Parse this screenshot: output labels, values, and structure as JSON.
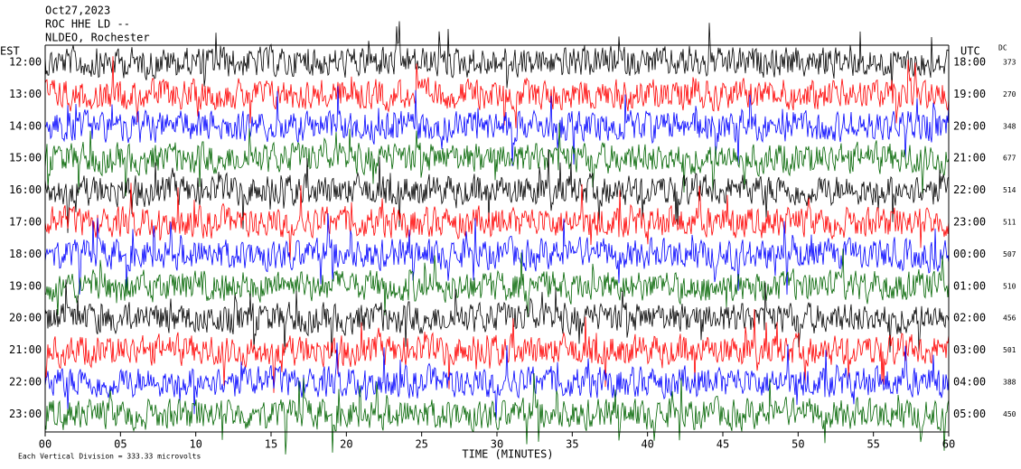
{
  "header": {
    "date": "Oct27,2023",
    "station": "ROC HHE LD --",
    "network": "NLDEO, Rochester"
  },
  "chart_data": {
    "type": "helicorder",
    "left_label": "EST",
    "right_label": "UTC",
    "dc_label": "DC",
    "x_label": "TIME (MINUTES)",
    "note": "Each Vertical Division = 333.33 microvolts",
    "xlim": [
      0,
      60
    ],
    "xticks": [
      {
        "value": 0,
        "label": "00"
      },
      {
        "value": 5,
        "label": "05"
      },
      10,
      15,
      20,
      25,
      30,
      35,
      40,
      45,
      50,
      55,
      60
    ],
    "rows": [
      {
        "est": "12:00",
        "utc": "18:00",
        "dc": 373,
        "color": "#000000"
      },
      {
        "est": "13:00",
        "utc": "19:00",
        "dc": 270,
        "color": "#ff0000"
      },
      {
        "est": "14:00",
        "utc": "20:00",
        "dc": 348,
        "color": "#0000ff"
      },
      {
        "est": "15:00",
        "utc": "21:00",
        "dc": 677,
        "color": "#006400"
      },
      {
        "est": "16:00",
        "utc": "22:00",
        "dc": 514,
        "color": "#000000"
      },
      {
        "est": "17:00",
        "utc": "23:00",
        "dc": 511,
        "color": "#ff0000"
      },
      {
        "est": "18:00",
        "utc": "00:00",
        "dc": 507,
        "color": "#0000ff"
      },
      {
        "est": "19:00",
        "utc": "01:00",
        "dc": 510,
        "color": "#006400"
      },
      {
        "est": "20:00",
        "utc": "02:00",
        "dc": 456,
        "color": "#000000"
      },
      {
        "est": "21:00",
        "utc": "03:00",
        "dc": 501,
        "color": "#ff0000"
      },
      {
        "est": "22:00",
        "utc": "04:00",
        "dc": 388,
        "color": "#0000ff"
      },
      {
        "est": "23:00",
        "utc": "05:00",
        "dc": 450,
        "color": "#006400"
      }
    ]
  }
}
